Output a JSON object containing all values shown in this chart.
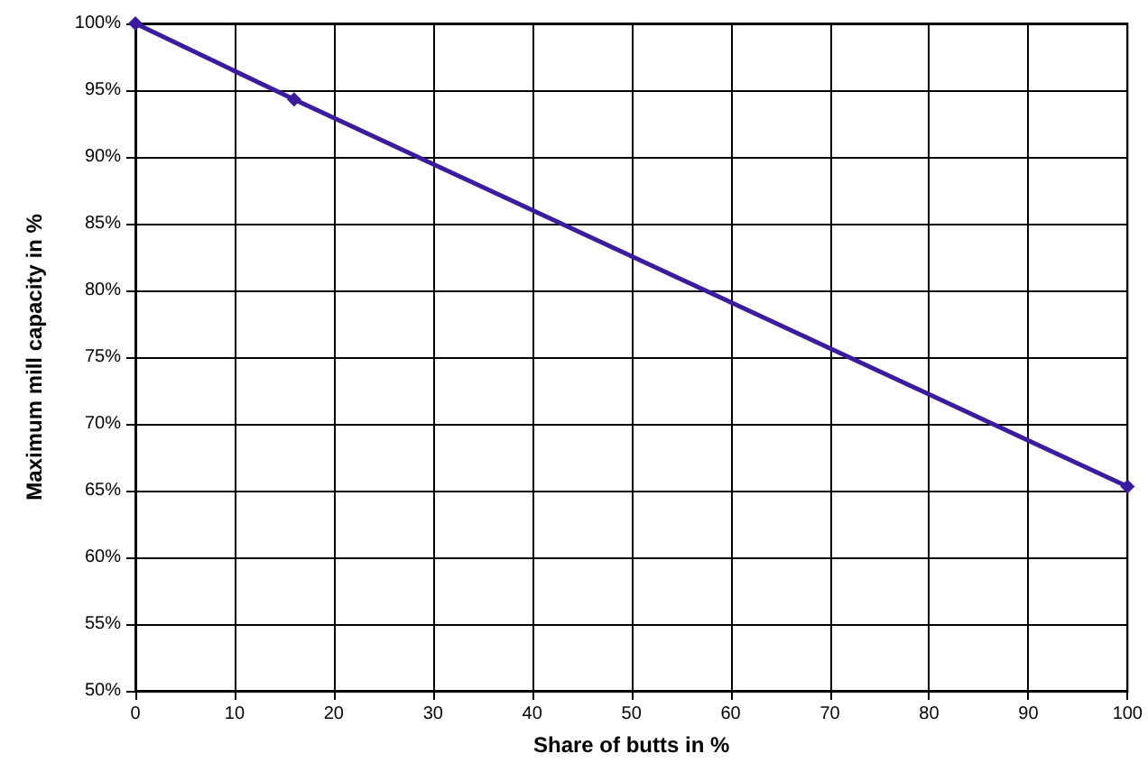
{
  "chart_data": {
    "type": "line",
    "xlabel": "Share of butts in %",
    "ylabel": "Maximum mill capacity in %",
    "x": [
      0,
      16,
      100
    ],
    "series": [
      {
        "color": "#3b1c9c",
        "values": [
          100,
          94.3,
          65.3
        ]
      }
    ],
    "xlim": [
      0,
      100
    ],
    "xticks": [
      0,
      10,
      20,
      30,
      40,
      50,
      60,
      70,
      80,
      90,
      100
    ],
    "ylim": [
      50,
      100
    ],
    "yticks": [
      {
        "value": 50,
        "label": "50%"
      },
      {
        "value": 55,
        "label": "55%"
      },
      {
        "value": 60,
        "label": "60%"
      },
      {
        "value": 65,
        "label": "65%"
      },
      {
        "value": 70,
        "label": "70%"
      },
      {
        "value": 75,
        "label": "75%"
      },
      {
        "value": 80,
        "label": "80%"
      },
      {
        "value": 85,
        "label": "85%"
      },
      {
        "value": 90,
        "label": "90%"
      },
      {
        "value": 95,
        "label": "95%"
      },
      {
        "value": 100,
        "label": "100%"
      }
    ],
    "grid": true,
    "marker": "diamond",
    "line_style": "solid"
  }
}
